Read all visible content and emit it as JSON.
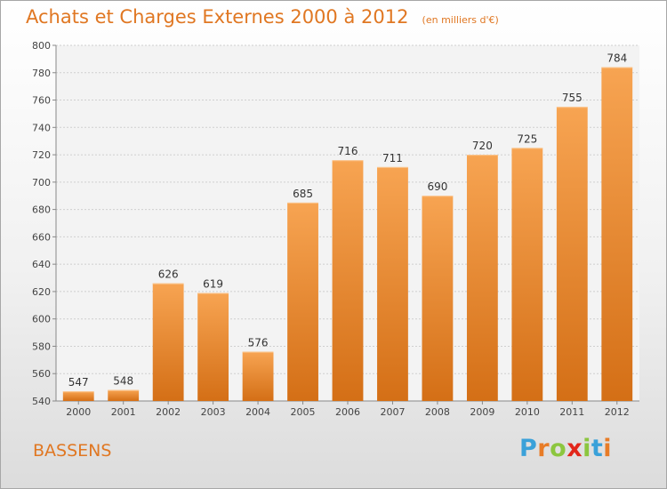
{
  "header": {
    "title": "Achats et Charges Externes 2000 à 2012",
    "subtitle": "(en milliers d'€)"
  },
  "footer": {
    "place": "BASSENS",
    "logo": "Proxiti"
  },
  "colors": {
    "accent": "#e07722",
    "bar_top": "#f7a452",
    "bar_bottom": "#d46f16",
    "logo_letters": [
      "#3aa1d9",
      "#e87c27",
      "#8cc63f",
      "#e2261a",
      "#8cc63f",
      "#3aa1d9",
      "#e87c27"
    ]
  },
  "chart_data": {
    "type": "bar",
    "categories": [
      "2000",
      "2001",
      "2002",
      "2003",
      "2004",
      "2005",
      "2006",
      "2007",
      "2008",
      "2009",
      "2010",
      "2011",
      "2012"
    ],
    "values": [
      547,
      548,
      626,
      619,
      576,
      685,
      716,
      711,
      690,
      720,
      725,
      755,
      784
    ],
    "title": "Achats et Charges Externes 2000 à 2012",
    "ylim": [
      540,
      800
    ],
    "yticks": [
      540,
      560,
      580,
      600,
      620,
      640,
      660,
      680,
      700,
      720,
      740,
      760,
      780,
      800
    ],
    "grid": true,
    "data_labels": true
  }
}
